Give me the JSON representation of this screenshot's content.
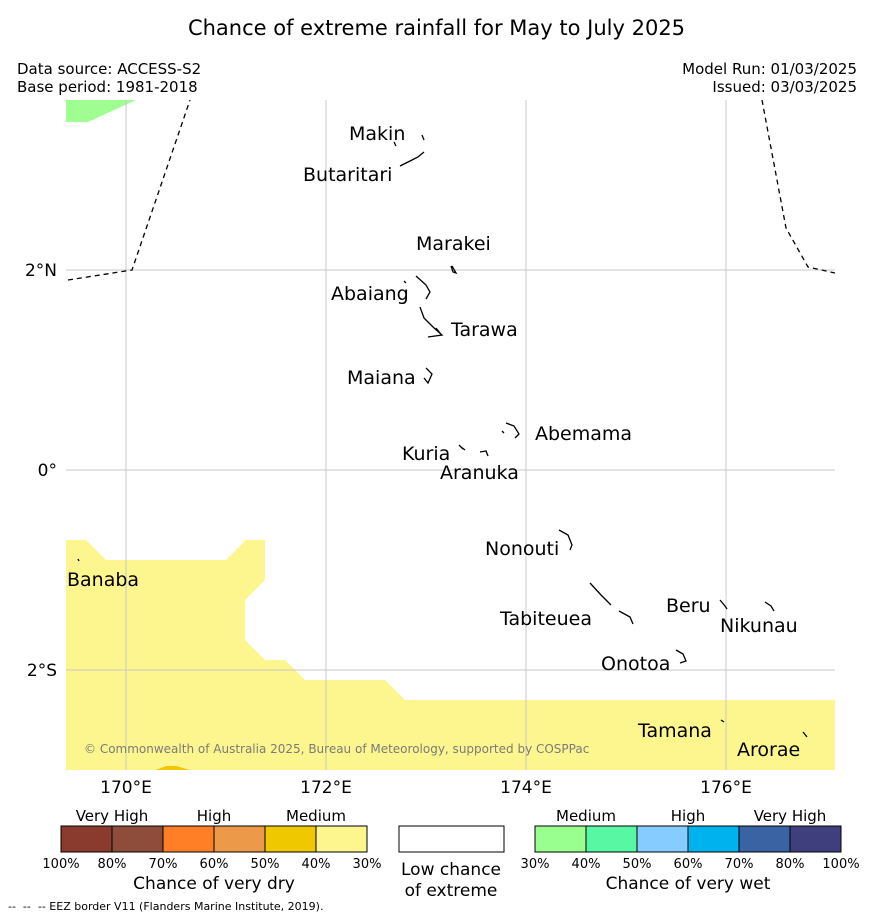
{
  "title": "Chance of extreme rainfall for May to July 2025",
  "meta": {
    "source": "Data source: ACCESS-S2",
    "base_period": "Base period: 1981-2018",
    "model_run": "Model Run: 01/03/2025",
    "issued": "Issued: 03/03/2025"
  },
  "map": {
    "lat_labels": [
      "2°N",
      "0°",
      "2°S"
    ],
    "lon_labels": [
      "170°E",
      "172°E",
      "174°E",
      "176°E"
    ],
    "places": {
      "makin": "Makin",
      "butaritari": "Butaritari",
      "marakei": "Marakei",
      "abaiang": "Abaiang",
      "tarawa": "Tarawa",
      "maiana": "Maiana",
      "abemama": "Abemama",
      "kuria": "Kuria",
      "aranuka": "Aranuka",
      "nonouti": "Nonouti",
      "banaba": "Banaba",
      "beru": "Beru",
      "nikunau": "Nikunau",
      "tabiteuea": "Tabiteuea",
      "onotoa": "Onotoa",
      "tamana": "Tamana",
      "arorae": "Arorae"
    },
    "copyright": "© Commonwealth of Australia 2025, Bureau of Meteorology, supported by COSPPac",
    "fill_colors": {
      "dry_medium": "#fdf68f",
      "dry_high": "#f2c500",
      "wet_medium": "#9ffd92"
    }
  },
  "legend": {
    "dry": {
      "headers": [
        "Very High",
        "High",
        "Medium"
      ],
      "colors": [
        "#8b3a2e",
        "#8e4c3b",
        "#ff7f27",
        "#ec9a49",
        "#f0c800",
        "#fdf68f"
      ],
      "ticks": [
        "100%",
        "80%",
        "70%",
        "60%",
        "50%",
        "40%",
        "30%"
      ],
      "title": "Chance of very dry"
    },
    "low": {
      "title_line1": "Low chance",
      "title_line2": "of extreme",
      "color": "#ffffff"
    },
    "wet": {
      "headers": [
        "Medium",
        "High",
        "Very High"
      ],
      "colors": [
        "#99ff8f",
        "#58f7a3",
        "#87ccff",
        "#00b2ee",
        "#3a63a3",
        "#3f3f7e"
      ],
      "ticks": [
        "30%",
        "40%",
        "50%",
        "60%",
        "70%",
        "80%",
        "100%"
      ],
      "title": "Chance of very wet"
    }
  },
  "footnote": "--  --  -- EEZ border V11 (Flanders Marine Institute, 2019)."
}
